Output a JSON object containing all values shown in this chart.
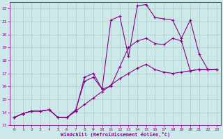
{
  "title": "",
  "xlabel": "Windchill (Refroidissement éolien,°C)",
  "ylabel": "",
  "background_color": "#cce8e8",
  "grid_color": "#aacccc",
  "line_color": "#880088",
  "xlim": [
    -0.5,
    23.5
  ],
  "ylim": [
    13,
    22.5
  ],
  "xticks": [
    0,
    1,
    2,
    3,
    4,
    5,
    6,
    7,
    8,
    9,
    10,
    11,
    12,
    13,
    14,
    15,
    16,
    17,
    18,
    19,
    20,
    21,
    22,
    23
  ],
  "yticks": [
    13,
    14,
    15,
    16,
    17,
    18,
    19,
    20,
    21,
    22
  ],
  "line1_x": [
    0,
    1,
    2,
    3,
    4,
    5,
    6,
    7,
    8,
    9,
    10,
    11,
    12,
    13,
    14,
    15,
    16,
    17,
    18,
    19,
    20,
    21,
    22,
    23
  ],
  "line1_y": [
    13.6,
    13.9,
    14.1,
    14.1,
    14.2,
    13.6,
    13.6,
    14.1,
    16.7,
    17.0,
    15.8,
    21.1,
    21.4,
    18.3,
    22.2,
    22.3,
    21.3,
    21.2,
    21.1,
    19.7,
    21.1,
    18.5,
    17.3,
    17.3
  ],
  "line2_x": [
    0,
    1,
    2,
    3,
    4,
    5,
    6,
    7,
    8,
    9,
    10,
    11,
    12,
    13,
    14,
    15,
    16,
    17,
    18,
    19,
    20,
    21,
    22,
    23
  ],
  "line2_y": [
    13.6,
    13.9,
    14.1,
    14.1,
    14.2,
    13.6,
    13.6,
    14.2,
    16.4,
    16.7,
    15.8,
    16.0,
    17.5,
    19.0,
    19.5,
    19.7,
    19.3,
    19.2,
    19.7,
    19.5,
    17.2,
    17.3,
    17.3,
    17.3
  ],
  "line3_x": [
    0,
    1,
    2,
    3,
    4,
    5,
    6,
    7,
    8,
    9,
    10,
    11,
    12,
    13,
    14,
    15,
    16,
    17,
    18,
    19,
    20,
    21,
    22,
    23
  ],
  "line3_y": [
    13.6,
    13.9,
    14.1,
    14.1,
    14.2,
    13.6,
    13.6,
    14.1,
    14.6,
    15.1,
    15.6,
    16.1,
    16.6,
    17.0,
    17.4,
    17.7,
    17.3,
    17.1,
    17.0,
    17.1,
    17.2,
    17.3,
    17.3,
    17.3
  ]
}
